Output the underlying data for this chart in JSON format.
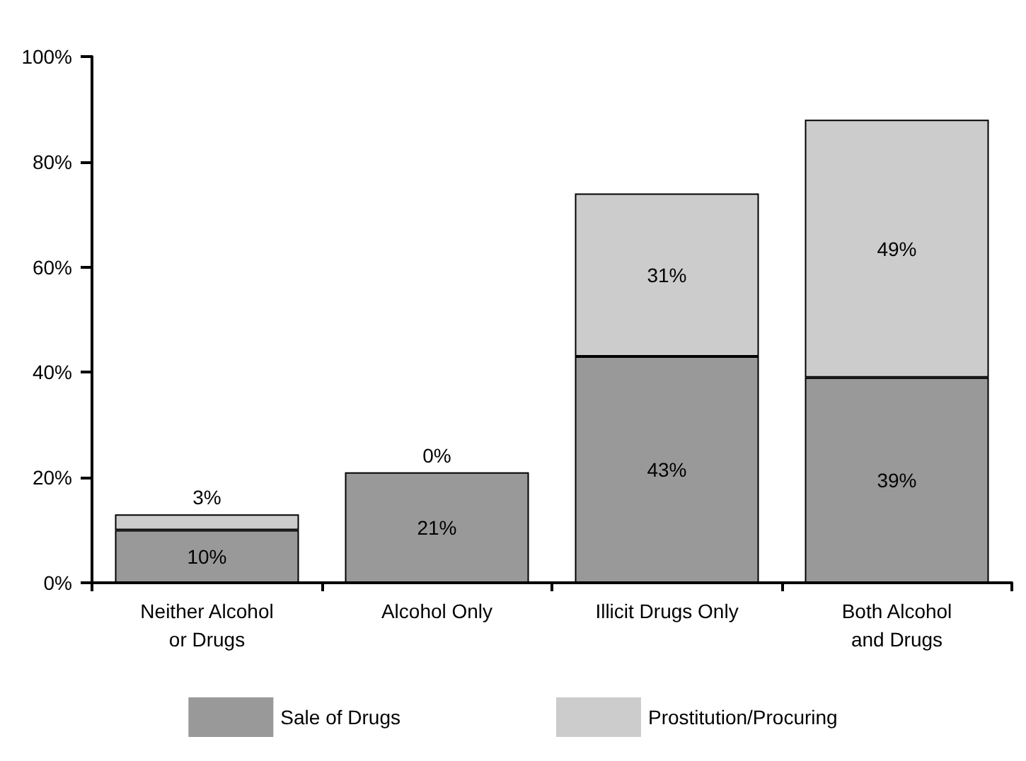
{
  "chart_data": {
    "type": "bar",
    "stacked": true,
    "categories": [
      "Neither Alcohol\nor Drugs",
      "Alcohol Only",
      "Illicit Drugs Only",
      "Both Alcohol\nand Drugs"
    ],
    "series": [
      {
        "name": "Sale of Drugs",
        "color": "#999999",
        "values": [
          10,
          21,
          43,
          39
        ],
        "value_labels": [
          "10%",
          "21%",
          "43%",
          "39%"
        ]
      },
      {
        "name": "Prostitution/Procuring",
        "color": "#cccccc",
        "values": [
          3,
          0,
          31,
          49
        ],
        "value_labels": [
          "3%",
          "0%",
          "31%",
          "49%"
        ]
      }
    ],
    "ylim": [
      0,
      100
    ],
    "yticks": [
      {
        "value": 0,
        "label": "0%"
      },
      {
        "value": 20,
        "label": "20%"
      },
      {
        "value": 40,
        "label": "40%"
      },
      {
        "value": 60,
        "label": "60%"
      },
      {
        "value": 80,
        "label": "80%"
      },
      {
        "value": 100,
        "label": "100%"
      }
    ],
    "grid": false,
    "legend": "bottom"
  }
}
